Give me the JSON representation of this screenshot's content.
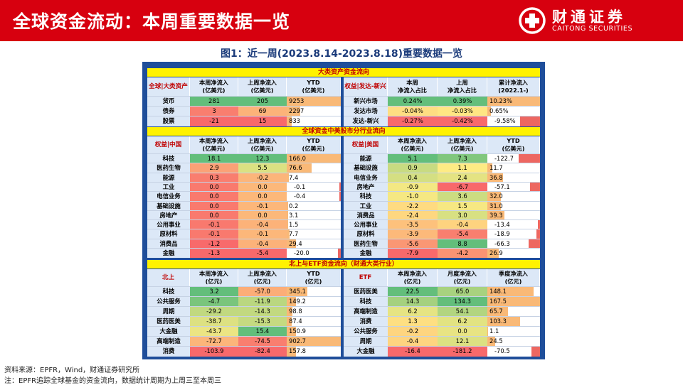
{
  "header": {
    "title": "全球资金流动：本周重要数据一览",
    "brand_cn": "财通证券",
    "brand_en": "CAITONG SECURITIES"
  },
  "figure_title": "图1：近一周(2023.8.14-2023.8.18)重要数据一览",
  "sections": {
    "s1": "大类资产资金流向",
    "s2": "全球资金中美股市分行业流向",
    "s3": "北上与ETF资金流向（财通大类行业）"
  },
  "colors": {
    "header_red": "#d7000f",
    "frame_blue": "#1f4e9a",
    "section_yellow": "#fff200",
    "green": "#63be7b",
    "yellow": "#ffeb84",
    "red": "#f8696b"
  },
  "tables": {
    "t1": {
      "headers": [
        "全球|大类资产",
        "本周净流入\n(亿美元)",
        "上周净流入\n(亿美元)",
        "YTD\n(亿美元)"
      ],
      "rows": [
        [
          "货币",
          "281",
          "205",
          "9253"
        ],
        [
          "债券",
          "3",
          "69",
          "2297"
        ],
        [
          "股票",
          "-21",
          "15",
          "833"
        ]
      ]
    },
    "t2": {
      "headers": [
        "权益|发达-新兴",
        "本周\n净流入占比",
        "上周\n净流入占比",
        "累计净流入\n(2022.1-)"
      ],
      "rows": [
        [
          "新兴市场",
          "0.24%",
          "0.39%",
          "10.23%"
        ],
        [
          "发达市场",
          "-0.04%",
          "-0.03%",
          "0.65%"
        ],
        [
          "发达-新兴",
          "-0.27%",
          "-0.42%",
          "-9.58%"
        ]
      ]
    },
    "t3": {
      "headers": [
        "权益|中国",
        "本周净流入\n(亿美元)",
        "上周净流入\n(亿美元)",
        "YTD\n(亿美元)"
      ],
      "rows": [
        [
          "科技",
          "18.1",
          "12.3",
          "166.0"
        ],
        [
          "医药生物",
          "2.9",
          "5.5",
          "76.6"
        ],
        [
          "能源",
          "0.3",
          "-0.2",
          "7.4"
        ],
        [
          "工业",
          "0.0",
          "0.0",
          "-0.1"
        ],
        [
          "电信业务",
          "0.0",
          "0.0",
          "-0.4"
        ],
        [
          "基础设施",
          "0.0",
          "-0.1",
          "0.2"
        ],
        [
          "房地产",
          "0.0",
          "0.0",
          "3.1"
        ],
        [
          "公用事业",
          "-0.1",
          "-0.4",
          "1.5"
        ],
        [
          "原材料",
          "-0.1",
          "-0.1",
          "7.7"
        ],
        [
          "消费品",
          "-1.2",
          "-0.4",
          "29.4"
        ],
        [
          "金融",
          "-1.3",
          "-5.4",
          "-20.0"
        ]
      ]
    },
    "t4": {
      "headers": [
        "权益|美国",
        "本周净流入\n(亿美元)",
        "上周净流入\n(亿美元)",
        "YTD\n(亿美元)"
      ],
      "rows": [
        [
          "能源",
          "5.1",
          "7.3",
          "-122.7"
        ],
        [
          "基础设施",
          "0.9",
          "1.1",
          "11.7"
        ],
        [
          "电信业务",
          "0.4",
          "2.4",
          "36.8"
        ],
        [
          "房地产",
          "-0.9",
          "-6.7",
          "-57.1"
        ],
        [
          "科技",
          "-1.0",
          "3.6",
          "32.0"
        ],
        [
          "工业",
          "-2.2",
          "1.5",
          "31.0"
        ],
        [
          "消费品",
          "-2.4",
          "3.0",
          "39.3"
        ],
        [
          "公用事业",
          "-3.5",
          "-0.4",
          "-13.4"
        ],
        [
          "原材料",
          "-3.9",
          "-5.4",
          "-18.9"
        ],
        [
          "医药生物",
          "-5.6",
          "8.8",
          "-66.3"
        ],
        [
          "金融",
          "-7.9",
          "-4.2",
          "26.9"
        ]
      ]
    },
    "t5": {
      "headers": [
        "北上",
        "本周净流入\n(亿元)",
        "上周净流入\n(亿元)",
        "YTD\n(亿元)"
      ],
      "rows": [
        [
          "科技",
          "3.2",
          "-57.0",
          "345.1"
        ],
        [
          "公共服务",
          "-4.7",
          "-11.9",
          "149.2"
        ],
        [
          "周期",
          "-29.2",
          "-14.3",
          "98.8"
        ],
        [
          "医药医美",
          "-38.7",
          "-15.3",
          "87.4"
        ],
        [
          "大金融",
          "-43.7",
          "15.4",
          "150.9"
        ],
        [
          "高端制造",
          "-72.7",
          "-74.5",
          "902.7"
        ],
        [
          "消费",
          "-103.9",
          "-82.4",
          "157.8"
        ]
      ]
    },
    "t6": {
      "headers": [
        "ETF",
        "本周净流入\n(亿元)",
        "月度净流入\n(亿元)",
        "季度净流入\n(亿元)"
      ],
      "rows": [
        [
          "医药医美",
          "22.5",
          "65.0",
          "148.1"
        ],
        [
          "科技",
          "14.3",
          "134.3",
          "167.5"
        ],
        [
          "高端制造",
          "6.2",
          "54.1",
          "65.7"
        ],
        [
          "消费",
          "1.3",
          "6.2",
          "103.3"
        ],
        [
          "公共服务",
          "-0.2",
          "0.0",
          "1.1"
        ],
        [
          "周期",
          "-0.4",
          "12.1",
          "24.5"
        ],
        [
          "大金融",
          "-16.4",
          "-181.2",
          "-70.5"
        ]
      ]
    }
  },
  "footnotes": [
    "资料来源：EPFR，Wind，财通证券研究所",
    "注：EPFR追踪全球基金的资金流向，数据统计周期为上周三至本周三"
  ]
}
